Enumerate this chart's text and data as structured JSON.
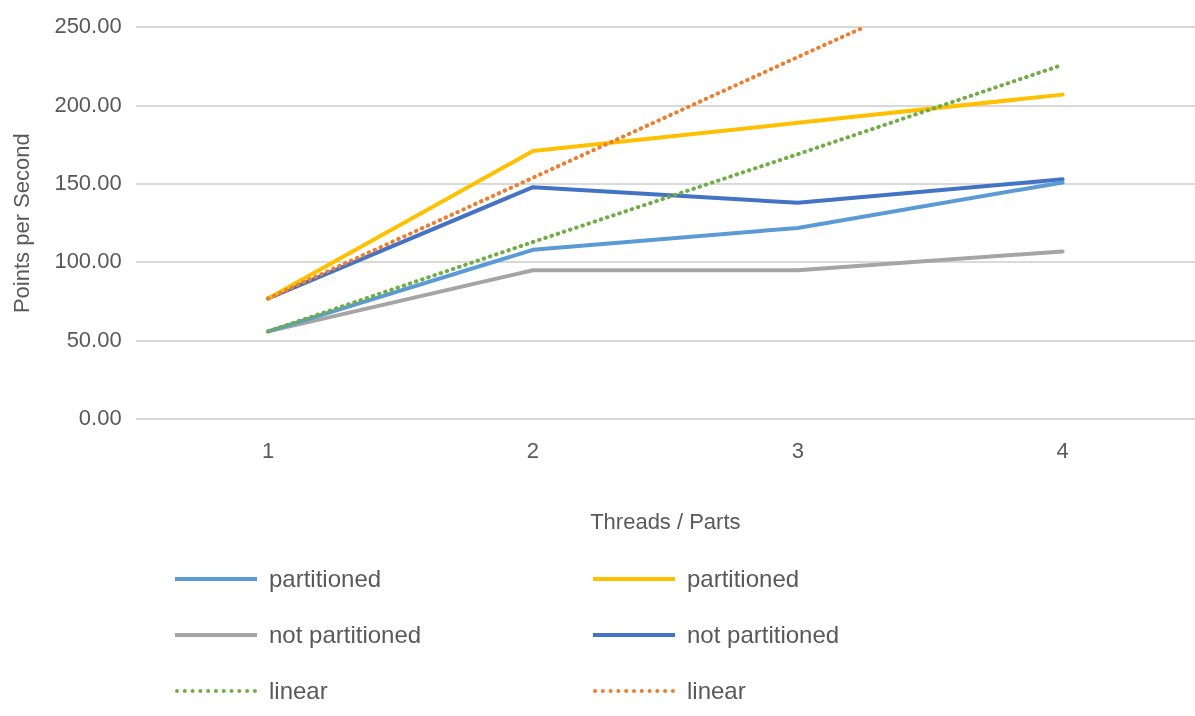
{
  "chart_data": {
    "type": "line",
    "xlabel": "Threads / Parts",
    "ylabel": "Points per Second",
    "x": [
      1,
      2,
      3,
      4
    ],
    "xlim": [
      0.5,
      4.5
    ],
    "xticks": [
      1,
      2,
      3,
      4
    ],
    "series": [
      {
        "name": "partitioned",
        "color": "#5b9bd5",
        "values": [
          56,
          108,
          122,
          151
        ]
      },
      {
        "name": "partitioned",
        "color": "#ffc000",
        "values": [
          77,
          171,
          189,
          207
        ]
      },
      {
        "name": "not partitioned",
        "color": "#a5a5a5",
        "values": [
          56,
          95,
          95,
          107
        ]
      },
      {
        "name": "not partitioned",
        "color": "#4472c4",
        "values": [
          77,
          148,
          138,
          153
        ]
      },
      {
        "name": "linear",
        "color": "#70ad47",
        "line_style": "dotted",
        "values": [
          56,
          113,
          169,
          226
        ]
      },
      {
        "name": "linear",
        "color": "#ed7d31",
        "line_style": "dotted",
        "x": [
          1,
          2,
          3,
          3.25
        ],
        "values": [
          77,
          154,
          231,
          250
        ]
      }
    ],
    "ylim": [
      0,
      250
    ],
    "yticks": [
      {
        "value": 0,
        "label": "0.00"
      },
      {
        "value": 50,
        "label": "50.00"
      },
      {
        "value": 100,
        "label": "100.00"
      },
      {
        "value": 150,
        "label": "150.00"
      },
      {
        "value": 200,
        "label": "200.00"
      },
      {
        "value": 250,
        "label": "250.00"
      }
    ],
    "grid": "y",
    "legend": "bottom",
    "marker": "none",
    "line_style": "solid"
  }
}
